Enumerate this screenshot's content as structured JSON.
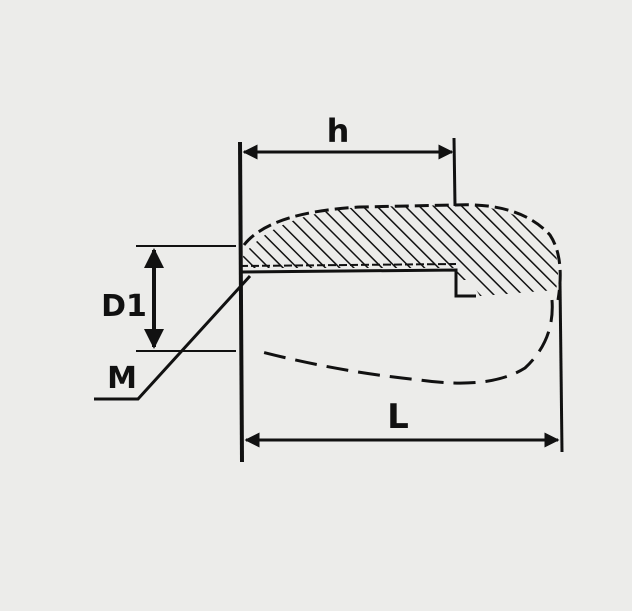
{
  "labels": {
    "h": "h",
    "L": "L",
    "D1": "D1",
    "M": "M"
  },
  "colors": {
    "background": "#ececea",
    "ink": "#111111"
  }
}
